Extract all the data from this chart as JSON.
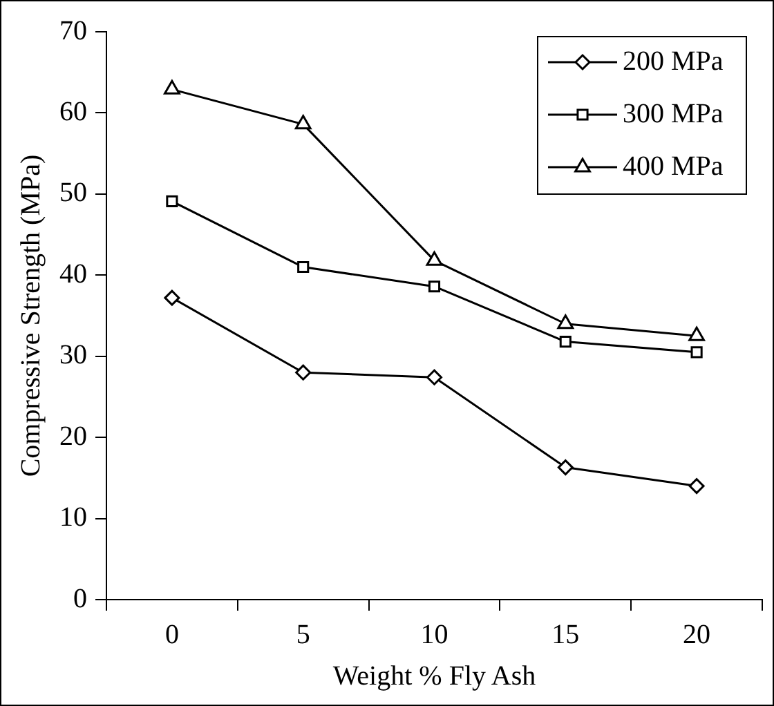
{
  "chart_data": {
    "type": "line",
    "xlabel": "Weight % Fly Ash",
    "ylabel": "Compressive Strength (MPa)",
    "categories": [
      "0",
      "5",
      "10",
      "15",
      "20"
    ],
    "ylim": [
      0,
      70
    ],
    "yticks": [
      0,
      10,
      20,
      30,
      40,
      50,
      60,
      70
    ],
    "grid": false,
    "legend": "top right",
    "series": [
      {
        "name": "200 MPa",
        "color": "#000000",
        "marker": "diamond",
        "values": [
          37.2,
          28,
          27.4,
          16.3,
          14
        ]
      },
      {
        "name": "300 MPa",
        "color": "#000000",
        "marker": "square",
        "values": [
          49.1,
          41,
          38.6,
          31.8,
          30.5
        ]
      },
      {
        "name": "400 MPa",
        "color": "#000000",
        "marker": "triangle",
        "values": [
          62.9,
          58.6,
          41.8,
          34,
          32.5
        ]
      }
    ]
  }
}
